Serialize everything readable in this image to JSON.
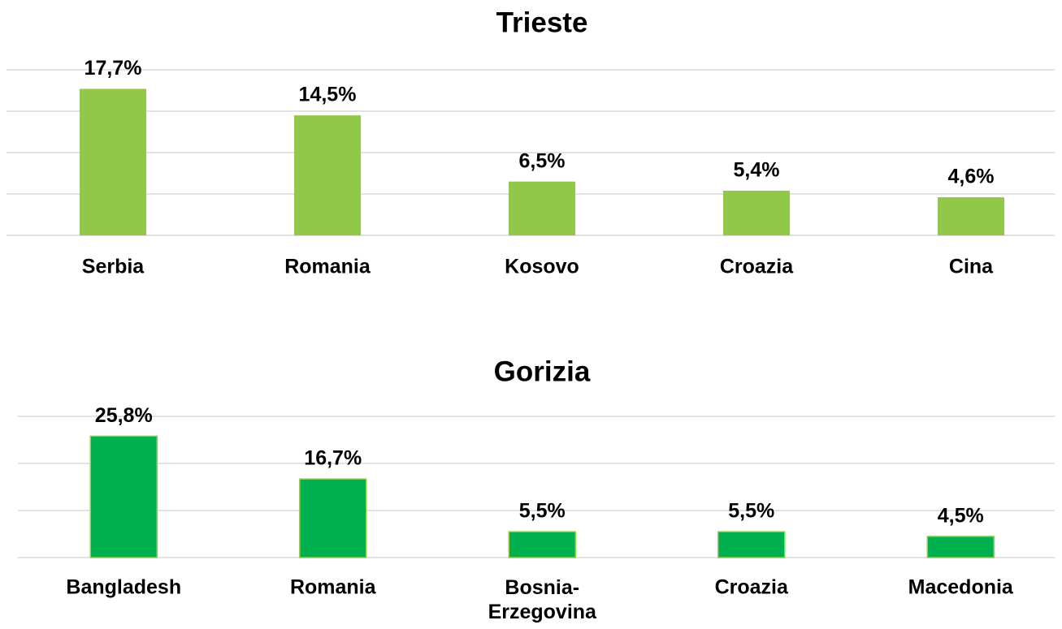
{
  "chart_data": [
    {
      "type": "bar",
      "title": "Trieste",
      "categories": [
        "Serbia",
        "Romania",
        "Kosovo",
        "Croazia",
        "Cina"
      ],
      "values": [
        17.7,
        14.5,
        6.5,
        5.4,
        4.6
      ],
      "value_labels": [
        "17,7%",
        "14,5%",
        "6,5%",
        "5,4%",
        "4,6%"
      ],
      "color": "#92c84a",
      "ylim": [
        0,
        20
      ],
      "yticks": [
        0,
        5,
        10,
        15,
        20
      ],
      "grid": true
    },
    {
      "type": "bar",
      "title": "Gorizia",
      "categories": [
        "Bangladesh",
        "Romania",
        "Bosnia-Erzegovina",
        "Croazia",
        "Macedonia"
      ],
      "values": [
        25.8,
        16.7,
        5.5,
        5.5,
        4.5
      ],
      "value_labels": [
        "25,8%",
        "16,7%",
        "5,5%",
        "5,5%",
        "4,5%"
      ],
      "color": "#00b04f",
      "ylim": [
        0,
        30
      ],
      "yticks": [
        0,
        10,
        20,
        30
      ],
      "grid": true
    }
  ]
}
